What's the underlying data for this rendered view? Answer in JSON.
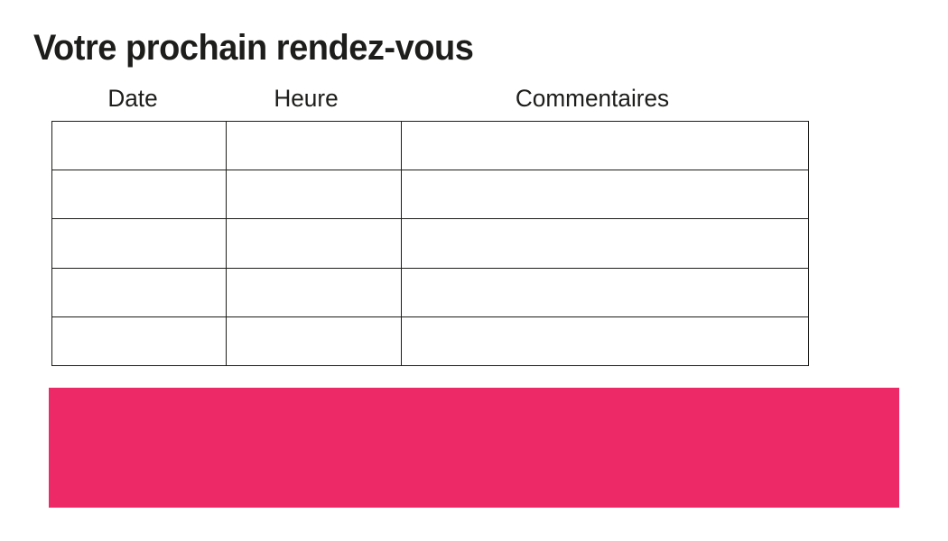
{
  "page": {
    "title": "Votre prochain rendez-vous"
  },
  "table": {
    "headers": [
      "Date",
      "Heure",
      "Commentaires"
    ],
    "rows": [
      [
        "",
        "",
        ""
      ],
      [
        "",
        "",
        ""
      ],
      [
        "",
        "",
        ""
      ],
      [
        "",
        "",
        ""
      ],
      [
        "",
        "",
        ""
      ]
    ]
  },
  "colors": {
    "accent_pink": "#ED2A67",
    "ink": "#1D1D1B",
    "table_border": "#1D1D1B",
    "background": "#FFFFFF"
  }
}
